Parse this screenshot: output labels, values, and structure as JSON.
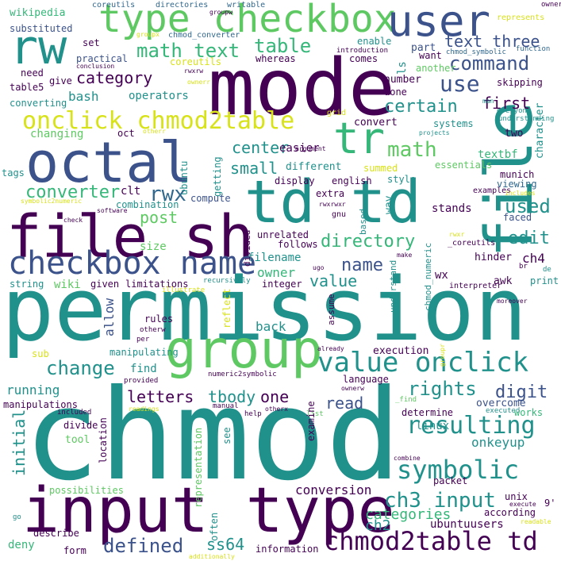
{
  "palette": {
    "dark_purple": "#440154",
    "indigo": "#3b528b",
    "slate": "#31688e",
    "teal": "#21918c",
    "green": "#35b779",
    "lime": "#5ec962",
    "yellow": "#d8e219"
  },
  "words": {
    "chmod": "chmod",
    "permission": "permission",
    "mode": "mode",
    "input_type": "input type",
    "file_sh": "file sh",
    "td_td": "td td",
    "file_v": "file",
    "octal": "octal",
    "group": "group",
    "type_checkbox": "type checkbox",
    "user": "user",
    "rw": "rw",
    "tr": "tr",
    "checkbox_name": "checkbox name",
    "value_onclick": "value onclick",
    "chmod2table_td": "chmod2table td",
    "onclick_chmod2table": "onclick chmod2table",
    "symbolic": "symbolic",
    "resulting": "resulting",
    "ch3_input": "ch3 input",
    "math_text": "math text",
    "math": "math",
    "table": "table",
    "command": "command",
    "text_three": "text three",
    "category": "category",
    "use": "use",
    "certain": "certain",
    "first": "first",
    "rights": "rights",
    "change": "change",
    "digit": "digit",
    "directory": "directory",
    "edit": "edit",
    "used": "used",
    "converter": "converter",
    "rwx": "rwx",
    "center": "center",
    "small": "small",
    "post": "post",
    "name": "name",
    "value": "value",
    "defined": "defined",
    "ss64": "ss64",
    "categories": "categories",
    "ch2": "ch2",
    "ubuntuusers": "ubuntuusers",
    "letters": "letters",
    "tbody": "tbody",
    "one": "one",
    "read": "read",
    "running": "running",
    "initial": "initial",
    "conversion": "conversion",
    "ch4": "ch4",
    "wikipedia": "wikipedia",
    "coreutils": "coreutils",
    "directories": "directories",
    "writable": "writable",
    "represents": "represents",
    "substituted": "substituted",
    "chmod_converter": "chmod_converter",
    "groupx": "groupx",
    "set": "set",
    "enable": "enable",
    "part": "part",
    "chmod_symbolic": "chmod_symbolic",
    "function": "function",
    "practical": "practical",
    "coreutils2": "coreutils",
    "whereas": "whereas",
    "comes": "comes",
    "ls": "ls",
    "want": "want",
    "rwxrw": "rwxrw",
    "conclusion": "conclusion",
    "introduction": "introduction",
    "another": "another",
    "need": "need",
    "ownerr": "ownerr",
    "give": "give",
    "table5": "table5",
    "operators": "operators",
    "bash": "bash",
    "number": "number",
    "done": "done",
    "skipping": "skipping",
    "character": "character",
    "converting": "converting",
    "grid": "grid",
    "convert": "convert",
    "systems": "systems",
    "man": "man",
    "everyone": "everyone",
    "understanding": "understanding",
    "changing": "changing",
    "oct": "oct",
    "easier": "easier",
    "projects": "projects",
    "two": "two",
    "otherr": "otherr",
    "argument": "argument",
    "textbf": "textbf",
    "tags": "tags",
    "ubuntu": "ubuntu",
    "getting": "getting",
    "different": "different",
    "summed": "summed",
    "essentials": "essentials",
    "munich": "munich",
    "clt": "clt",
    "display": "display",
    "english": "english",
    "style": "style",
    "compute": "compute",
    "extra": "extra",
    "examples": "examples",
    "viewing": "viewing",
    "symbolic2numeric": "symbolic2numeric",
    "combination": "combination",
    "way": "way",
    "stands": "stands",
    "includes": "includes",
    "check": "check",
    "software": "software",
    "rwxrwxr": "rwxrwxr",
    "faced": "faced",
    "size": "size",
    "unrelated": "unrelated",
    "gnu": "gnu",
    "based": "based",
    "rwxr": "rwxr",
    "coreutils3": "_coreutils",
    "follows": "follows",
    "divided": "divided",
    "hinder": "hinder",
    "filename": "filename",
    "make": "make",
    "ugo": "ugo",
    "wiki": "wiki",
    "owner": "owner",
    "wx": "wx",
    "br": "br",
    "de": "de",
    "string": "string",
    "given": "given",
    "limitations": "limitations",
    "recursively": "recursively",
    "integer": "integer",
    "understand": "understand",
    "chmod_numeric": "chmod_numeric",
    "print": "print",
    "awk": "awk",
    "interpreter": "interpreter",
    "illustrate": "illustrate",
    "allow": "allow",
    "reflect": "reflect",
    "assume": "assume",
    "ownerx": "ownerx",
    "rules": "rules",
    "otherw": "otherw",
    "back": "back",
    "moreover": "moreover",
    "per": "per",
    "execution": "execution",
    "sub": "sub",
    "manipulating": "manipulating",
    "already": "already",
    "groupr": "groupr",
    "find": "find",
    "numeric2symbolic": "numeric2symbolic",
    "language": "language",
    "provided": "provided",
    "ownerw": "ownerw",
    "manipulations": "manipulations",
    "readings": "readings",
    "manual": "manual",
    "otherx": "otherx",
    "help": "help",
    "list": "list",
    "find2": "_find",
    "determine": "determine",
    "overcome": "overcome",
    "executed": "executed",
    "works": "works",
    "included": "included",
    "divide": "divide",
    "location": "location",
    "tool": "tool",
    "representation": "representation",
    "see": "see",
    "examine": "examine",
    "linux": "linux",
    "onkeyup": "onkeyup",
    "combine": "combine",
    "packet": "packet",
    "possibilities": "possibilities",
    "unix": "unix",
    "according": "according",
    "execute": "execute",
    "nine": "9'",
    "often": "often",
    "go": "go",
    "describe": "describe",
    "readable": "readable",
    "deny": "deny",
    "form": "form",
    "information": "information",
    "additionally": "additionally",
    "gpw": "groupw"
  }
}
